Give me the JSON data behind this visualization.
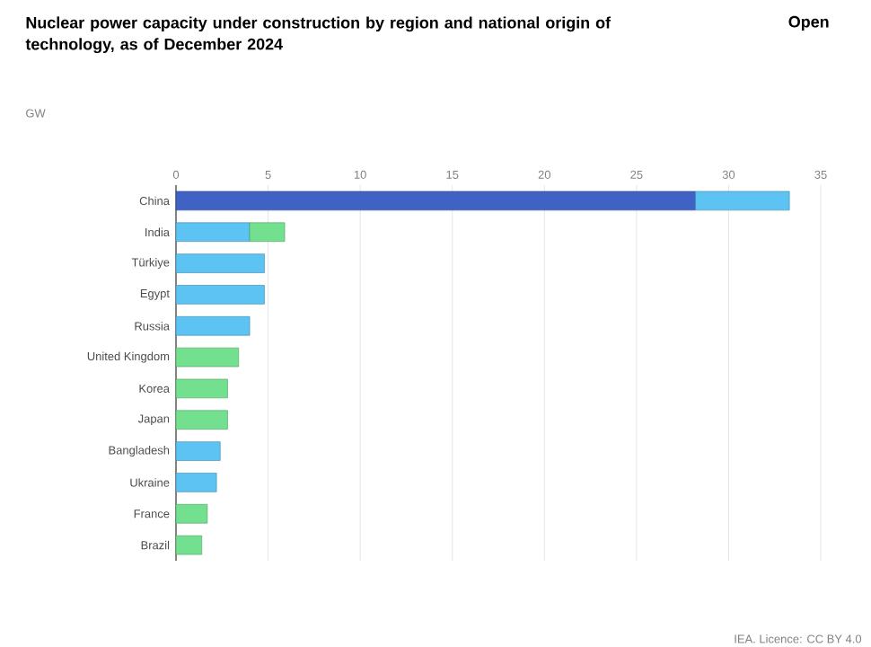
{
  "chart_data": {
    "type": "bar",
    "orientation": "horizontal",
    "stacked": true,
    "title": "Nuclear power capacity under construction by region and national origin of technology, as of December 2024",
    "categories": [
      "China",
      "India",
      "Türkiye",
      "Egypt",
      "Russia",
      "United Kingdom",
      "Korea",
      "Japan",
      "Bangladesh",
      "Ukraine",
      "France",
      "Brazil"
    ],
    "series": [
      {
        "color": "#3f62c4",
        "values": [
          28.2,
          null,
          null,
          null,
          null,
          null,
          null,
          null,
          null,
          null,
          null,
          null
        ]
      },
      {
        "color": "#5cc3f2",
        "values": [
          5.1,
          4.0,
          4.8,
          4.8,
          4.0,
          null,
          null,
          null,
          2.4,
          2.2,
          null,
          null
        ]
      },
      {
        "color": "#72e08e",
        "values": [
          null,
          1.9,
          null,
          null,
          null,
          3.4,
          2.8,
          2.8,
          null,
          null,
          1.7,
          1.4
        ]
      }
    ],
    "xlim": [
      0,
      35
    ],
    "xticks": [
      0,
      5,
      10,
      15,
      20,
      25,
      30,
      35
    ],
    "grid": "x",
    "annotations": [
      "Open",
      "IEA. Licence: CC BY 4.0",
      "GW"
    ]
  }
}
